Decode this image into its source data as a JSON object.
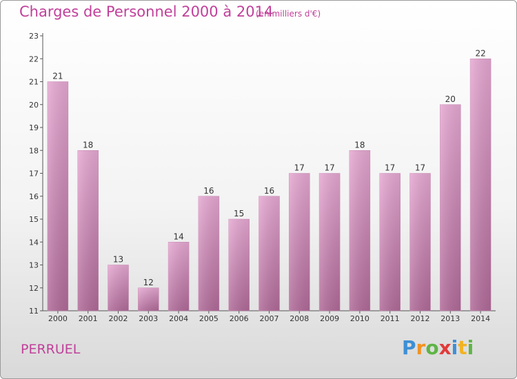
{
  "chart_data": {
    "type": "bar",
    "title": "Charges de Personnel 2000 à 2014",
    "subtitle": "(en milliers d'€)",
    "categories": [
      "2000",
      "2001",
      "2002",
      "2003",
      "2004",
      "2005",
      "2006",
      "2007",
      "2008",
      "2009",
      "2010",
      "2011",
      "2012",
      "2013",
      "2014"
    ],
    "values": [
      21,
      18,
      13,
      12,
      14,
      16,
      15,
      16,
      17,
      17,
      18,
      17,
      17,
      20,
      22
    ],
    "ylim": [
      11,
      23
    ],
    "yticks": [
      11,
      12,
      13,
      14,
      15,
      16,
      17,
      18,
      19,
      20,
      21,
      22,
      23
    ],
    "grid": false,
    "bar_color": "#d98fbf"
  },
  "commune": "PERRUEL",
  "logo": {
    "parts": [
      "P",
      "r",
      "o",
      "x",
      "i",
      "t",
      "i"
    ]
  }
}
